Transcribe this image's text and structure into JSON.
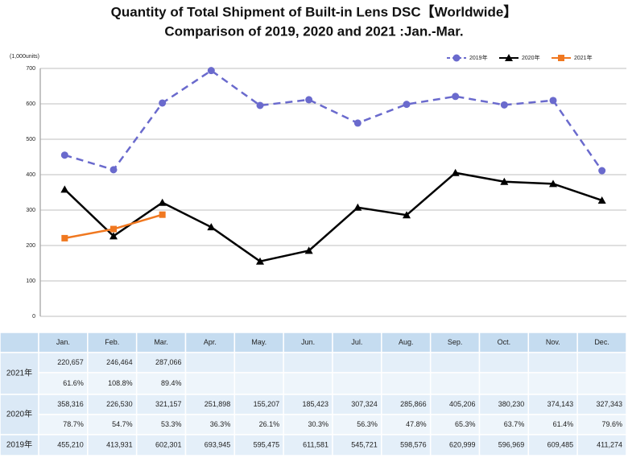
{
  "chart_data": {
    "type": "line",
    "title": "Quantity of Total Shipment of Built-in Lens DSC【Worldwide】",
    "subtitle": "Comparison of 2019, 2020 and 2021 :Jan.-Mar.",
    "y_label": "(1,000units)",
    "categories": [
      "Jan.",
      "Feb.",
      "Mar.",
      "Apr.",
      "May.",
      "Jun.",
      "Jul.",
      "Aug.",
      "Sep.",
      "Oct.",
      "Nov.",
      "Dec."
    ],
    "ylim": [
      0,
      700
    ],
    "yticks": [
      0,
      100,
      200,
      300,
      400,
      500,
      600,
      700
    ],
    "grid": true,
    "legend": "top-right",
    "series": [
      {
        "name": "2021年",
        "color": "#f07820",
        "marker": "square",
        "dash": false,
        "values": [
          220.657,
          246.464,
          287.066,
          null,
          null,
          null,
          null,
          null,
          null,
          null,
          null,
          null
        ],
        "value_labels": [
          "220,657",
          "246,464",
          "287,066",
          null,
          null,
          null,
          null,
          null,
          null,
          null,
          null,
          null
        ],
        "ratios": [
          61.6,
          108.8,
          89.4,
          null,
          null,
          null,
          null,
          null,
          null,
          null,
          null,
          null
        ],
        "ratio_labels": [
          "61.6%",
          "108.8%",
          "89.4%",
          null,
          null,
          null,
          null,
          null,
          null,
          null,
          null,
          null
        ]
      },
      {
        "name": "2020年",
        "color": "#000000",
        "marker": "triangle",
        "dash": false,
        "values": [
          358.316,
          226.53,
          321.157,
          251.898,
          155.207,
          185.423,
          307.324,
          285.866,
          405.206,
          380.23,
          374.143,
          327.343
        ],
        "value_labels": [
          "358,316",
          "226,530",
          "321,157",
          "251,898",
          "155,207",
          "185,423",
          "307,324",
          "285,866",
          "405,206",
          "380,230",
          "374,143",
          "327,343"
        ],
        "ratios": [
          78.7,
          54.7,
          53.3,
          36.3,
          26.1,
          30.3,
          56.3,
          47.8,
          65.3,
          63.7,
          61.4,
          79.6
        ],
        "ratio_labels": [
          "78.7%",
          "54.7%",
          "53.3%",
          "36.3%",
          "26.1%",
          "30.3%",
          "56.3%",
          "47.8%",
          "65.3%",
          "63.7%",
          "61.4%",
          "79.6%"
        ]
      },
      {
        "name": "2019年",
        "color": "#6a6acd",
        "marker": "circle",
        "dash": true,
        "values": [
          455.21,
          413.931,
          602.301,
          693.945,
          595.475,
          611.581,
          545.721,
          598.576,
          620.999,
          596.969,
          609.485,
          411.274
        ],
        "value_labels": [
          "455,210",
          "413,931",
          "602,301",
          "693,945",
          "595,475",
          "611,581",
          "545,721",
          "598,576",
          "620,999",
          "596,969",
          "609,485",
          "411,274"
        ]
      }
    ]
  }
}
